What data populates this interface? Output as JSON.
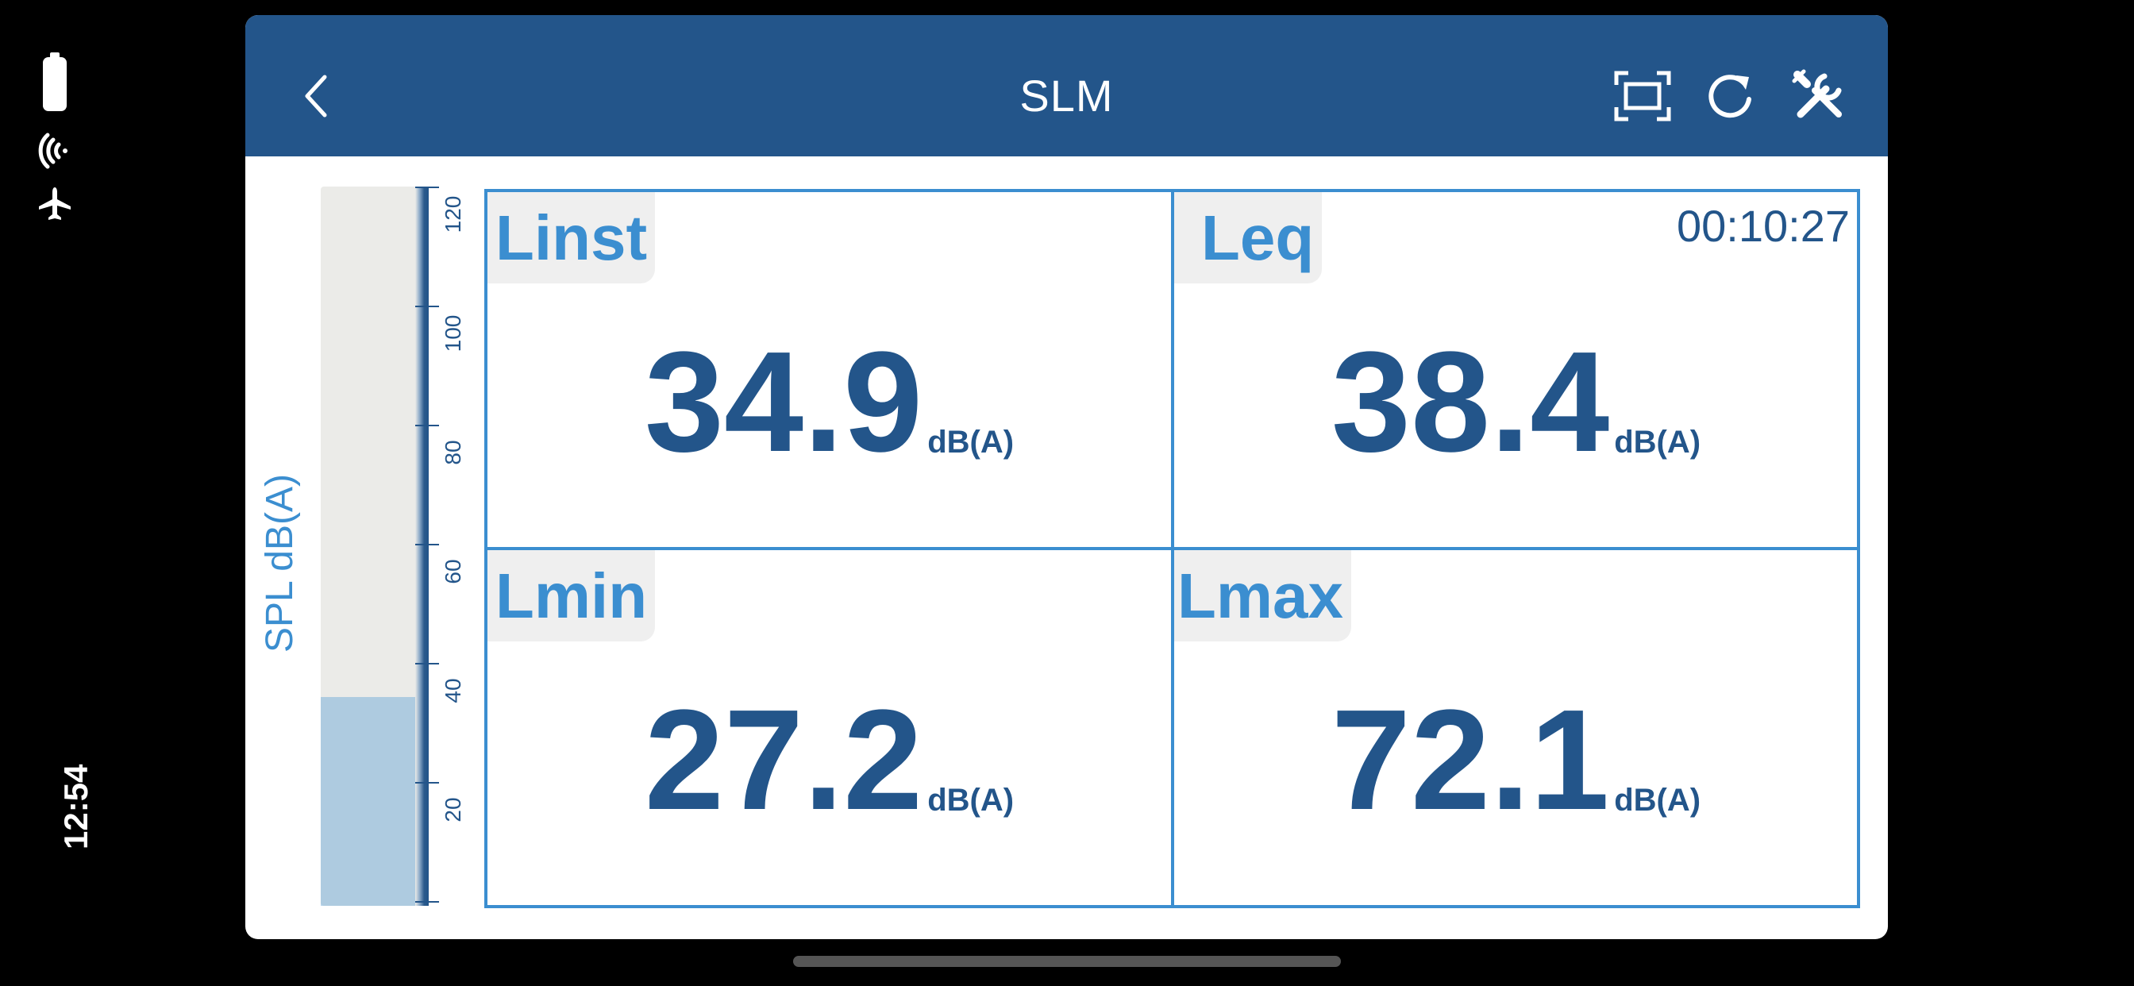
{
  "status_bar": {
    "time": "12:54",
    "icons": [
      "battery-icon",
      "wifi-icon",
      "airplane-icon"
    ]
  },
  "header": {
    "title": "SLM",
    "back_icon": "chevron-left-icon",
    "actions": [
      "fit-screen-icon",
      "reset-icon",
      "settings-tools-icon"
    ]
  },
  "meter": {
    "axis_title": "SPL dB(A)",
    "min": 0,
    "max": 120,
    "ticks": [
      "20",
      "40",
      "60",
      "80",
      "100",
      "120"
    ],
    "level": 34.9
  },
  "readings": {
    "linst": {
      "label": "Linst",
      "value": "34.9",
      "unit": "dB(A)"
    },
    "leq": {
      "label": "Leq",
      "value": "38.4",
      "unit": "dB(A)",
      "timer": "00:10:27"
    },
    "lmin": {
      "label": "Lmin",
      "value": "27.2",
      "unit": "dB(A)"
    },
    "lmax": {
      "label": "Lmax",
      "value": "72.1",
      "unit": "dB(A)"
    }
  },
  "colors": {
    "primary": "#23558a",
    "accent": "#3b8ed0",
    "label_bg": "#efefef"
  }
}
